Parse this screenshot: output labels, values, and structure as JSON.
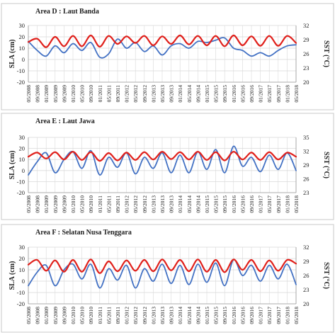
{
  "colors": {
    "sla": "#4472c4",
    "sst": "#e0201b",
    "grid": "#d9d9d9",
    "axis": "#9a9a9a",
    "panel_border": "#c8c8c8"
  },
  "chart_data": [
    {
      "type": "line",
      "title": "Area D : Laut Banda",
      "xlabel": "",
      "ylabel": "SLA (cm)",
      "y2label": "SST (°C)",
      "ylim": [
        -20,
        30
      ],
      "yticks": [
        -20,
        -10,
        0,
        10,
        20,
        30
      ],
      "y2lim": [
        20,
        32
      ],
      "y2ticks": [
        20,
        23,
        26,
        29,
        32
      ],
      "x": [
        "05/2008",
        "09/2008",
        "01/2009",
        "05/2009",
        "09/2009",
        "01/2010",
        "05/2010",
        "09/2010",
        "01/2011",
        "05/2011",
        "09/2011",
        "01/2012",
        "05/2012",
        "09/2012",
        "01/2013",
        "05/2013",
        "09/2013",
        "01/2014",
        "05/2014",
        "09/2014",
        "01/2015",
        "05/2015",
        "09/2015",
        "01/2016",
        "05/2016",
        "09/2016",
        "01/2017",
        "05/2017",
        "09/2017",
        "01/2018",
        "05/2018"
      ],
      "grid": true,
      "series": [
        {
          "name": "SLA (cm)",
          "axis": "left",
          "values": [
            16,
            8,
            3,
            12,
            6,
            14,
            8,
            15,
            2,
            5,
            18,
            10,
            15,
            7,
            12,
            4,
            12,
            14,
            10,
            16,
            15,
            17,
            19,
            10,
            8,
            3,
            6,
            3,
            8,
            12,
            13
          ]
        },
        {
          "name": "SST (°C)",
          "axis": "right",
          "values": [
            28.5,
            29.2,
            27.4,
            29.6,
            27.6,
            29.8,
            27.6,
            29.9,
            27.5,
            29.8,
            28.1,
            29.7,
            28.3,
            29.8,
            27.8,
            29.7,
            28.1,
            29.9,
            28.0,
            29.8,
            27.8,
            29.8,
            27.6,
            29.9,
            27.8,
            29.7,
            27.7,
            29.8,
            27.7,
            29.8,
            28.3
          ]
        }
      ]
    },
    {
      "type": "line",
      "title": "Area E : Laut Jawa",
      "xlabel": "",
      "ylabel": "SLA (cm)",
      "y2label": "SST (°C)",
      "ylim": [
        -20,
        30
      ],
      "yticks": [
        -20,
        -10,
        0,
        10,
        20,
        30
      ],
      "y2lim": [
        23,
        35
      ],
      "y2ticks": [
        23,
        26,
        29,
        32,
        35
      ],
      "x": [
        "05/2008",
        "09/2008",
        "01/2009",
        "05/2009",
        "09/2009",
        "01/2010",
        "05/2010",
        "09/2010",
        "01/2011",
        "05/2011",
        "09/2011",
        "01/2012",
        "05/2012",
        "09/2012",
        "01/2013",
        "05/2013",
        "09/2013",
        "01/2014",
        "05/2014",
        "09/2014",
        "01/2015",
        "05/2015",
        "09/2015",
        "01/2016",
        "05/2016",
        "09/2016",
        "01/2017",
        "05/2017",
        "09/2017",
        "01/2018",
        "05/2018"
      ],
      "grid": true,
      "series": [
        {
          "name": "SLA (cm)",
          "axis": "left",
          "values": [
            -4,
            8,
            16,
            -2,
            10,
            17,
            2,
            18,
            -4,
            12,
            3,
            16,
            -3,
            12,
            2,
            16,
            -2,
            14,
            -2,
            17,
            1,
            19,
            -2,
            22,
            4,
            12,
            -1,
            14,
            1,
            16,
            0
          ]
        },
        {
          "name": "SST (°C)",
          "axis": "right",
          "values": [
            30.8,
            31.7,
            30.4,
            31.8,
            30.2,
            31.9,
            30.1,
            31.8,
            29.9,
            31.6,
            30.0,
            31.7,
            30.1,
            31.8,
            30.2,
            31.9,
            30.3,
            31.8,
            30.2,
            31.9,
            30.1,
            31.8,
            30.0,
            31.9,
            30.2,
            31.7,
            30.1,
            31.8,
            30.2,
            31.7,
            30.8
          ]
        }
      ]
    },
    {
      "type": "line",
      "title": "Area F : Selatan Nusa Tenggara",
      "xlabel": "",
      "ylabel": "SLA (cm)",
      "y2label": "SST (°C)",
      "ylim": [
        -20,
        30
      ],
      "yticks": [
        -20,
        -10,
        0,
        10,
        20,
        30
      ],
      "y2lim": [
        20,
        32
      ],
      "y2ticks": [
        20,
        23,
        26,
        29,
        32
      ],
      "x": [
        "05/2008",
        "09/2008",
        "01/2009",
        "05/2009",
        "09/2009",
        "01/2010",
        "05/2010",
        "09/2010",
        "01/2011",
        "05/2011",
        "09/2011",
        "01/2012",
        "05/2012",
        "09/2012",
        "01/2013",
        "05/2013",
        "09/2013",
        "01/2014",
        "05/2014",
        "09/2014",
        "01/2015",
        "05/2015",
        "09/2015",
        "01/2016",
        "05/2016",
        "09/2016",
        "01/2017",
        "05/2017",
        "09/2017",
        "01/2018",
        "05/2018"
      ],
      "grid": true,
      "series": [
        {
          "name": "SLA (cm)",
          "axis": "left",
          "values": [
            -4,
            8,
            14,
            -4,
            10,
            15,
            2,
            15,
            -6,
            11,
            1,
            14,
            -6,
            11,
            0,
            15,
            -2,
            14,
            -3,
            15,
            -1,
            16,
            -4,
            19,
            5,
            14,
            0,
            14,
            2,
            15,
            -3
          ]
        },
        {
          "name": "SST (°C)",
          "axis": "right",
          "values": [
            28.3,
            29.3,
            27.0,
            29.2,
            26.8,
            29.3,
            26.8,
            29.4,
            26.5,
            29.0,
            26.9,
            29.2,
            27.0,
            29.3,
            26.9,
            29.4,
            27.1,
            29.3,
            26.9,
            29.4,
            26.8,
            29.3,
            26.7,
            29.4,
            27.2,
            29.3,
            26.9,
            29.2,
            27.0,
            29.3,
            28.5
          ]
        }
      ]
    }
  ]
}
